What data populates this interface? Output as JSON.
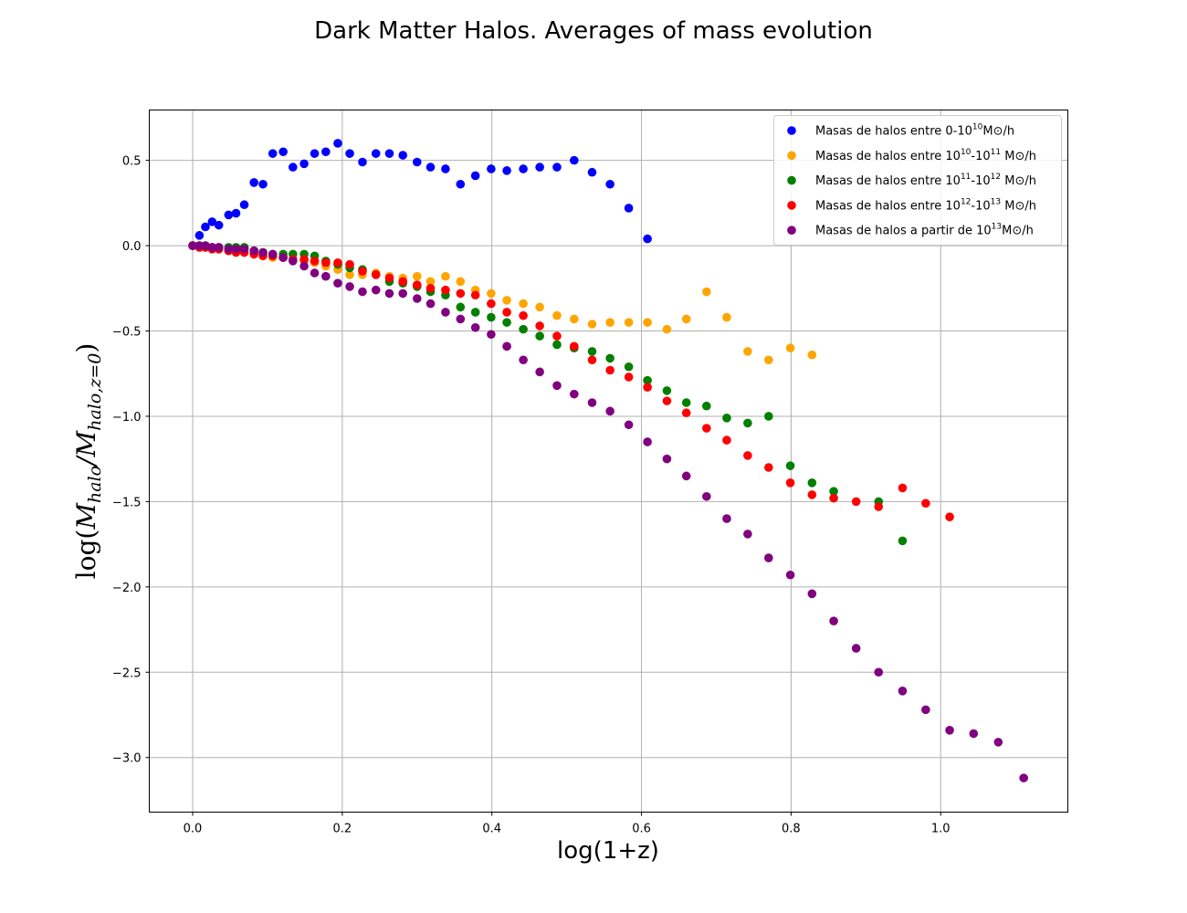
{
  "chart_data": {
    "type": "scatter",
    "title": "Dark Matter Halos. Averages of mass evolution",
    "xlabel": "log(1+z)",
    "ylabel": "log(M_halo/M_halo,z=0)",
    "xlim": [
      -0.058,
      1.17
    ],
    "ylim": [
      -3.32,
      0.795
    ],
    "xticks": [
      0.0,
      0.2,
      0.4,
      0.6,
      0.8,
      1.0
    ],
    "xtick_labels": [
      "0.0",
      "0.2",
      "0.4",
      "0.6",
      "0.8",
      "1.0"
    ],
    "yticks": [
      0.5,
      0.0,
      -0.5,
      -1.0,
      -1.5,
      -2.0,
      -2.5,
      -3.0
    ],
    "ytick_labels": [
      "0.5",
      "0.0",
      "−0.5",
      "−1.0",
      "−1.5",
      "−2.0",
      "−2.5",
      "−3.0"
    ],
    "grid": true,
    "legend_position": "top-right",
    "series": [
      {
        "name": "Masas de halos entre 0-10^10 M⊙/h",
        "legend": {
          "pre": "Masas de halos entre 0-10",
          "sup": "10",
          "post": "M⊙/h"
        },
        "color": "#0000ff",
        "x": [
          0.0,
          0.009,
          0.017,
          0.026,
          0.035,
          0.048,
          0.058,
          0.069,
          0.082,
          0.094,
          0.107,
          0.121,
          0.134,
          0.149,
          0.163,
          0.178,
          0.194,
          0.21,
          0.227,
          0.245,
          0.263,
          0.281,
          0.3,
          0.318,
          0.338,
          0.358,
          0.378,
          0.399,
          0.42,
          0.442,
          0.464,
          0.487,
          0.51,
          0.534,
          0.558,
          0.583,
          0.608
        ],
        "y": [
          0.0,
          0.06,
          0.11,
          0.14,
          0.12,
          0.18,
          0.19,
          0.24,
          0.37,
          0.36,
          0.54,
          0.55,
          0.46,
          0.48,
          0.54,
          0.55,
          0.6,
          0.54,
          0.49,
          0.54,
          0.54,
          0.53,
          0.49,
          0.46,
          0.45,
          0.36,
          0.41,
          0.45,
          0.44,
          0.45,
          0.46,
          0.46,
          0.5,
          0.43,
          0.36,
          0.22,
          0.04
        ]
      },
      {
        "name": "Masas de halos entre 10^10-10^11 M⊙/h",
        "legend": {
          "pre": "Masas de halos entre  10",
          "sup": "10",
          "mid": "-10",
          "sup2": "11",
          "post": " M⊙/h"
        },
        "color": "#ffa500",
        "x": [
          0.0,
          0.009,
          0.017,
          0.026,
          0.035,
          0.048,
          0.058,
          0.069,
          0.082,
          0.094,
          0.107,
          0.121,
          0.134,
          0.149,
          0.163,
          0.178,
          0.194,
          0.21,
          0.227,
          0.245,
          0.263,
          0.281,
          0.3,
          0.318,
          0.338,
          0.358,
          0.378,
          0.399,
          0.42,
          0.442,
          0.464,
          0.487,
          0.51,
          0.534,
          0.558,
          0.583,
          0.608,
          0.634,
          0.66,
          0.687,
          0.714,
          0.742,
          0.77,
          0.799,
          0.828
        ],
        "y": [
          0.0,
          -0.01,
          -0.01,
          -0.01,
          -0.02,
          -0.03,
          -0.03,
          -0.04,
          -0.05,
          -0.05,
          -0.07,
          -0.07,
          -0.08,
          -0.09,
          -0.1,
          -0.12,
          -0.14,
          -0.17,
          -0.17,
          -0.16,
          -0.18,
          -0.19,
          -0.18,
          -0.21,
          -0.18,
          -0.21,
          -0.26,
          -0.28,
          -0.32,
          -0.34,
          -0.36,
          -0.41,
          -0.43,
          -0.46,
          -0.45,
          -0.45,
          -0.45,
          -0.49,
          -0.43,
          -0.27,
          -0.42,
          -0.62,
          -0.67,
          -0.6,
          -0.64
        ]
      },
      {
        "name": "Masas de halos entre 10^11-10^12 M⊙/h",
        "legend": {
          "pre": "Masas de halos entre  10",
          "sup": "11",
          "mid": "-10",
          "sup2": "12",
          "post": " M⊙/h"
        },
        "color": "#008000",
        "x": [
          0.0,
          0.009,
          0.017,
          0.026,
          0.035,
          0.048,
          0.058,
          0.069,
          0.082,
          0.094,
          0.107,
          0.121,
          0.134,
          0.149,
          0.163,
          0.178,
          0.194,
          0.21,
          0.227,
          0.245,
          0.263,
          0.281,
          0.3,
          0.318,
          0.338,
          0.358,
          0.378,
          0.399,
          0.42,
          0.442,
          0.464,
          0.487,
          0.51,
          0.534,
          0.558,
          0.583,
          0.608,
          0.634,
          0.66,
          0.687,
          0.714,
          0.742,
          0.77,
          0.799,
          0.828,
          0.857,
          0.917,
          0.949
        ],
        "y": [
          0.0,
          0.0,
          0.0,
          -0.01,
          -0.01,
          -0.01,
          -0.01,
          -0.01,
          -0.03,
          -0.04,
          -0.05,
          -0.05,
          -0.05,
          -0.05,
          -0.06,
          -0.09,
          -0.11,
          -0.13,
          -0.14,
          -0.17,
          -0.21,
          -0.22,
          -0.24,
          -0.27,
          -0.29,
          -0.36,
          -0.39,
          -0.42,
          -0.45,
          -0.49,
          -0.53,
          -0.58,
          -0.6,
          -0.62,
          -0.66,
          -0.71,
          -0.79,
          -0.85,
          -0.92,
          -0.94,
          -1.01,
          -1.04,
          -1.0,
          -1.29,
          -1.39,
          -1.44,
          -1.5,
          -1.73
        ]
      },
      {
        "name": "Masas de halos entre 10^12-10^13 M⊙/h",
        "legend": {
          "pre": "Masas de halos entre  10",
          "sup": "12",
          "mid": "-10",
          "sup2": "13",
          "post": " M⊙/h"
        },
        "color": "#ff0000",
        "x": [
          0.0,
          0.009,
          0.017,
          0.026,
          0.035,
          0.048,
          0.058,
          0.069,
          0.082,
          0.094,
          0.107,
          0.121,
          0.134,
          0.149,
          0.163,
          0.178,
          0.194,
          0.21,
          0.227,
          0.245,
          0.263,
          0.281,
          0.3,
          0.318,
          0.338,
          0.358,
          0.378,
          0.399,
          0.42,
          0.442,
          0.464,
          0.487,
          0.51,
          0.534,
          0.558,
          0.583,
          0.608,
          0.634,
          0.66,
          0.687,
          0.714,
          0.742,
          0.77,
          0.799,
          0.828,
          0.857,
          0.887,
          0.917,
          0.949,
          0.98,
          1.012
        ],
        "y": [
          0.0,
          -0.01,
          -0.01,
          -0.02,
          -0.02,
          -0.03,
          -0.04,
          -0.04,
          -0.05,
          -0.06,
          -0.06,
          -0.07,
          -0.08,
          -0.08,
          -0.09,
          -0.1,
          -0.1,
          -0.11,
          -0.15,
          -0.17,
          -0.19,
          -0.21,
          -0.23,
          -0.25,
          -0.26,
          -0.28,
          -0.29,
          -0.34,
          -0.39,
          -0.41,
          -0.47,
          -0.53,
          -0.59,
          -0.67,
          -0.73,
          -0.77,
          -0.83,
          -0.91,
          -0.98,
          -1.07,
          -1.14,
          -1.23,
          -1.3,
          -1.39,
          -1.46,
          -1.48,
          -1.5,
          -1.53,
          -1.42,
          -1.51,
          -1.59
        ]
      },
      {
        "name": "Masas de halos a partir de 10^13 M⊙/h",
        "legend": {
          "pre": "Masas de halos a partir de 10",
          "sup": "13",
          "post": "M⊙/h"
        },
        "color": "#800080",
        "x": [
          0.0,
          0.009,
          0.017,
          0.026,
          0.035,
          0.048,
          0.058,
          0.069,
          0.082,
          0.094,
          0.107,
          0.121,
          0.134,
          0.149,
          0.163,
          0.178,
          0.194,
          0.21,
          0.227,
          0.245,
          0.263,
          0.281,
          0.3,
          0.318,
          0.338,
          0.358,
          0.378,
          0.399,
          0.42,
          0.442,
          0.464,
          0.487,
          0.51,
          0.534,
          0.558,
          0.583,
          0.608,
          0.634,
          0.66,
          0.687,
          0.714,
          0.742,
          0.77,
          0.799,
          0.828,
          0.857,
          0.887,
          0.917,
          0.949,
          0.98,
          1.012,
          1.044,
          1.077,
          1.111
        ],
        "y": [
          0.0,
          0.0,
          0.0,
          -0.01,
          -0.01,
          -0.02,
          -0.02,
          -0.02,
          -0.03,
          -0.04,
          -0.05,
          -0.07,
          -0.09,
          -0.12,
          -0.16,
          -0.18,
          -0.22,
          -0.24,
          -0.27,
          -0.26,
          -0.28,
          -0.28,
          -0.31,
          -0.34,
          -0.39,
          -0.43,
          -0.48,
          -0.52,
          -0.59,
          -0.67,
          -0.74,
          -0.82,
          -0.87,
          -0.92,
          -0.97,
          -1.05,
          -1.15,
          -1.25,
          -1.35,
          -1.47,
          -1.6,
          -1.69,
          -1.83,
          -1.93,
          -2.04,
          -2.2,
          -2.36,
          -2.5,
          -2.61,
          -2.72,
          -2.84,
          -2.86,
          -2.91,
          -3.12
        ]
      }
    ]
  }
}
